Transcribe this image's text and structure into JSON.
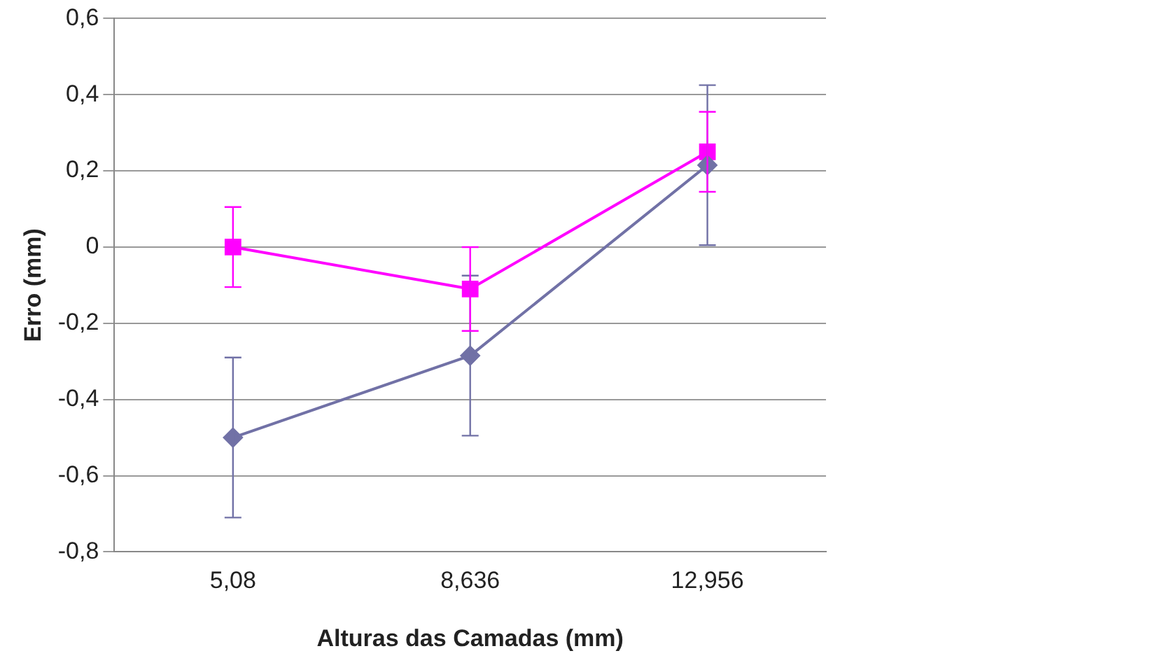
{
  "chart_data": {
    "type": "line",
    "xlabel": "Alturas das Camadas (mm)",
    "ylabel": "Erro (mm)",
    "categories": [
      "5,08",
      "8,636",
      "12,956"
    ],
    "series": [
      {
        "color": "#7171a6",
        "marker": "diamond",
        "values": [
          -0.5,
          -0.285,
          0.215
        ],
        "errors": [
          0.21,
          0.21,
          0.21
        ]
      },
      {
        "color": "#ff00ff",
        "marker": "square",
        "values": [
          0.0,
          -0.11,
          0.25
        ],
        "errors": [
          0.105,
          0.11,
          0.105
        ]
      }
    ],
    "ylim": [
      -0.8,
      0.6
    ],
    "yticks": [
      {
        "value": -0.8,
        "label": "-0,8"
      },
      {
        "value": -0.6,
        "label": "-0,6"
      },
      {
        "value": -0.4,
        "label": "-0,4"
      },
      {
        "value": -0.2,
        "label": "-0,2"
      },
      {
        "value": 0,
        "label": "0"
      },
      {
        "value": 0.2,
        "label": "0,2"
      },
      {
        "value": 0.4,
        "label": "0,4"
      },
      {
        "value": 0.6,
        "label": "0,6"
      }
    ],
    "grid": "y",
    "legend": false
  }
}
